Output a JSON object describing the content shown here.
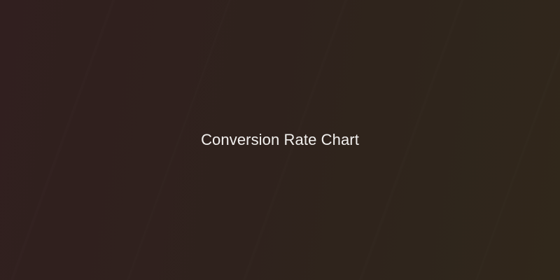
{
  "placeholder": {
    "label": "Conversion Rate Chart"
  }
}
